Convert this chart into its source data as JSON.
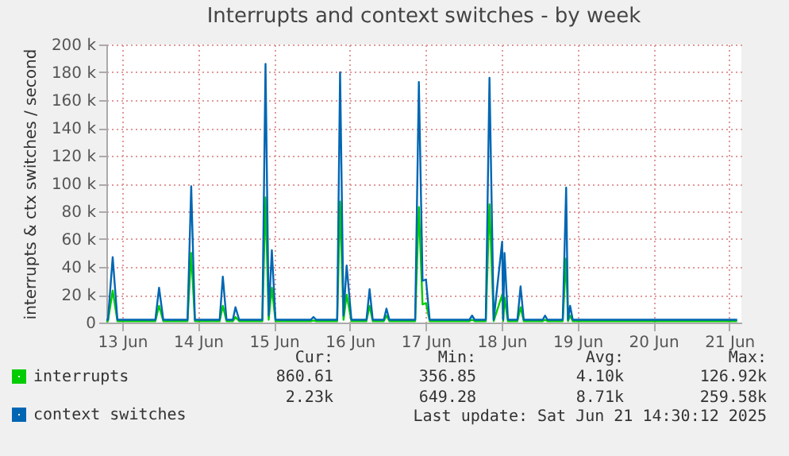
{
  "chart_data": {
    "type": "line",
    "title": "Interrupts and context switches - by week",
    "ylabel": "interrupts & ctx switches / second",
    "x": [
      "2025-06-13T07:00",
      "2025-06-13T07:30",
      "2025-06-13T09:00",
      "2025-06-13T10:30",
      "2025-06-13T22:30",
      "2025-06-13T23:40",
      "2025-06-14T01:00",
      "2025-06-14T08:40",
      "2025-06-14T09:50",
      "2025-06-14T11:00",
      "2025-06-14T18:50",
      "2025-06-14T19:50",
      "2025-06-14T21:00",
      "2025-06-14T23:00",
      "2025-06-14T23:50",
      "2025-06-15T01:00",
      "2025-06-15T08:20",
      "2025-06-15T09:20",
      "2025-06-15T10:20",
      "2025-06-15T11:20",
      "2025-06-15T12:30",
      "2025-06-15T23:40",
      "2025-06-16T00:30",
      "2025-06-16T01:20",
      "2025-06-16T08:00",
      "2025-06-16T08:55",
      "2025-06-16T10:00",
      "2025-06-16T11:00",
      "2025-06-16T12:30",
      "2025-06-16T17:15",
      "2025-06-16T18:15",
      "2025-06-16T19:15",
      "2025-06-16T22:45",
      "2025-06-16T23:35",
      "2025-06-17T00:30",
      "2025-06-17T08:40",
      "2025-06-17T09:50",
      "2025-06-17T11:00",
      "2025-06-17T12:05",
      "2025-06-17T13:15",
      "2025-06-18T01:50",
      "2025-06-18T02:40",
      "2025-06-18T03:30",
      "2025-06-18T07:00",
      "2025-06-18T08:10",
      "2025-06-18T09:30",
      "2025-06-18T12:10",
      "2025-06-18T12:30",
      "2025-06-18T12:55",
      "2025-06-18T14:00",
      "2025-06-18T17:00",
      "2025-06-18T18:00",
      "2025-06-18T19:00",
      "2025-06-19T01:00",
      "2025-06-19T01:45",
      "2025-06-19T02:30",
      "2025-06-19T07:20",
      "2025-06-19T08:25",
      "2025-06-19T09:00",
      "2025-06-19T09:40",
      "2025-06-19T10:30",
      "2025-06-21T14:30"
    ],
    "series": [
      {
        "name": "interrupts",
        "color": "#00cc00",
        "values": [
          1000,
          1000,
          23000,
          1000,
          1000,
          12000,
          1000,
          1000,
          50000,
          1000,
          1000,
          12000,
          1000,
          1000,
          4000,
          1000,
          1000,
          90000,
          2000,
          25000,
          1000,
          1000,
          1500,
          1000,
          1000,
          87000,
          2000,
          20000,
          1000,
          1000,
          12000,
          1000,
          1000,
          5000,
          1000,
          1000,
          83000,
          13000,
          14000,
          1000,
          1000,
          2000,
          1000,
          1000,
          85000,
          1000,
          20000,
          1000,
          18000,
          1000,
          1000,
          11000,
          1000,
          1000,
          2000,
          1000,
          1000,
          46000,
          1000,
          5000,
          1000,
          1000
        ]
      },
      {
        "name": "context switches",
        "color": "#0066b3",
        "values": [
          2000,
          2000,
          47000,
          2000,
          2000,
          25000,
          2000,
          2000,
          98000,
          2000,
          2000,
          33000,
          2000,
          2000,
          11000,
          2000,
          2000,
          186000,
          5000,
          52000,
          2000,
          2000,
          4000,
          2000,
          2000,
          180000,
          5000,
          41000,
          2000,
          2000,
          24000,
          2000,
          2000,
          10000,
          2000,
          2000,
          173000,
          30000,
          31000,
          2000,
          2000,
          5000,
          2000,
          2000,
          176000,
          2000,
          58000,
          2000,
          50000,
          2000,
          2000,
          26000,
          2000,
          2000,
          5000,
          2000,
          2000,
          97000,
          2000,
          12000,
          2000,
          2000
        ]
      }
    ],
    "xlim": [
      "2025-06-13T07:00",
      "2025-06-21T15:50"
    ],
    "xticks": [
      {
        "value": "2025-06-13T12:00",
        "label": "13 Jun"
      },
      {
        "value": "2025-06-14T12:00",
        "label": "14 Jun"
      },
      {
        "value": "2025-06-15T12:00",
        "label": "15 Jun"
      },
      {
        "value": "2025-06-16T12:00",
        "label": "16 Jun"
      },
      {
        "value": "2025-06-17T12:00",
        "label": "17 Jun"
      },
      {
        "value": "2025-06-18T12:00",
        "label": "18 Jun"
      },
      {
        "value": "2025-06-19T12:00",
        "label": "19 Jun"
      },
      {
        "value": "2025-06-20T12:00",
        "label": "20 Jun"
      },
      {
        "value": "2025-06-21T12:00",
        "label": "21 Jun"
      }
    ],
    "ylim": [
      0,
      200000
    ],
    "yticks": [
      {
        "value": 0,
        "label": "0"
      },
      {
        "value": 20000,
        "label": "20 k"
      },
      {
        "value": 40000,
        "label": "40 k"
      },
      {
        "value": 60000,
        "label": "60 k"
      },
      {
        "value": 80000,
        "label": "80 k"
      },
      {
        "value": 100000,
        "label": "100 k"
      },
      {
        "value": 120000,
        "label": "120 k"
      },
      {
        "value": 140000,
        "label": "140 k"
      },
      {
        "value": 160000,
        "label": "160 k"
      },
      {
        "value": 180000,
        "label": "180 k"
      },
      {
        "value": 200000,
        "label": "200 k"
      }
    ],
    "grid": true,
    "legend": "bottom left",
    "marker": "none",
    "line_style": "solid",
    "annotations": [
      "Cur:",
      "Min:",
      "Avg:",
      "Max:",
      "860.61",
      "356.85",
      "4.10k",
      "126.92k",
      "2.23k",
      "649.28",
      "8.71k",
      "259.58k",
      "Last update: Sat Jun 21 14:30:12 2025"
    ]
  }
}
